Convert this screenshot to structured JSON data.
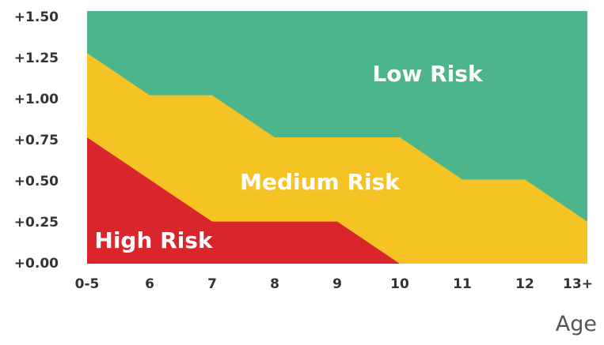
{
  "chart_data": {
    "type": "area",
    "categories": [
      "0-5",
      "6",
      "7",
      "8",
      "9",
      "10",
      "11",
      "12",
      "13+"
    ],
    "y_tick_labels": [
      "+0.00",
      "+0.25",
      "+0.50",
      "+0.75",
      "+1.00",
      "+1.25",
      "+1.50"
    ],
    "ylim": [
      0,
      1.5
    ],
    "xlabel": "Age",
    "ylabel": "",
    "title": "",
    "grid": false,
    "zones": [
      {
        "name": "High Risk",
        "color": "#d9262c",
        "upper": [
          0.75,
          0.5,
          0.25,
          0.25,
          0.25,
          0.0,
          null,
          null,
          null
        ]
      },
      {
        "name": "Medium Risk",
        "color": "#f6c324",
        "upper": [
          1.25,
          1.0,
          1.0,
          0.75,
          0.75,
          0.75,
          0.5,
          0.5,
          0.25
        ]
      },
      {
        "name": "Low Risk",
        "color": "#4cb58b",
        "upper": [
          1.5,
          1.5,
          1.5,
          1.5,
          1.5,
          1.5,
          1.5,
          1.5,
          1.5
        ]
      }
    ]
  }
}
